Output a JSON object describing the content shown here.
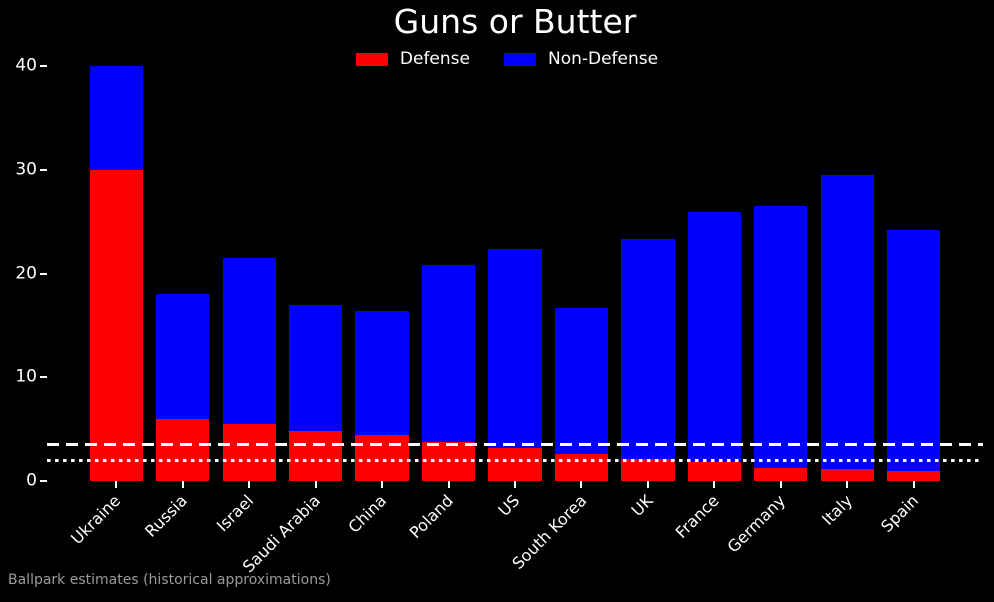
{
  "figure": {
    "title": "Guns or Butter",
    "footnote": "Ballpark estimates (historical approximations)",
    "background_color": "#000000",
    "text_color": "#ffffff",
    "footnote_color": "#9a9a9a"
  },
  "chart_data": {
    "type": "bar",
    "stacked": true,
    "title": "Guns or Butter",
    "categories": [
      "Ukraine",
      "Russia",
      "Israel",
      "Saudi Arabia",
      "China",
      "Poland",
      "US",
      "South Korea",
      "UK",
      "France",
      "Germany",
      "Italy",
      "Spain"
    ],
    "series": [
      {
        "name": "Defense",
        "color": "#ff0000",
        "values": [
          30,
          6,
          5.5,
          4.8,
          4.4,
          3.8,
          3.2,
          2.6,
          2.1,
          1.8,
          1.3,
          1.2,
          1.0
        ]
      },
      {
        "name": "Non-Defense",
        "color": "#0000ff",
        "values": [
          10,
          12,
          16,
          12.2,
          12,
          17,
          19.2,
          14.1,
          21.2,
          24.1,
          25.2,
          28.3,
          23.2
        ]
      }
    ],
    "stack_totals": [
      40,
      18,
      21.5,
      17,
      16.4,
      20.8,
      22.4,
      16.7,
      23.3,
      25.9,
      26.5,
      29.5,
      24.2
    ],
    "xlabel": "",
    "ylabel": "",
    "ylim": [
      0,
      42
    ],
    "yticks": [
      0,
      10,
      20,
      30,
      40
    ],
    "reference_lines": [
      {
        "value": 3.5,
        "style": "dashed",
        "color": "#ffffff"
      },
      {
        "value": 2.0,
        "style": "dotted",
        "color": "#ffffff"
      }
    ],
    "legend_position": "upper center",
    "grid": false
  }
}
